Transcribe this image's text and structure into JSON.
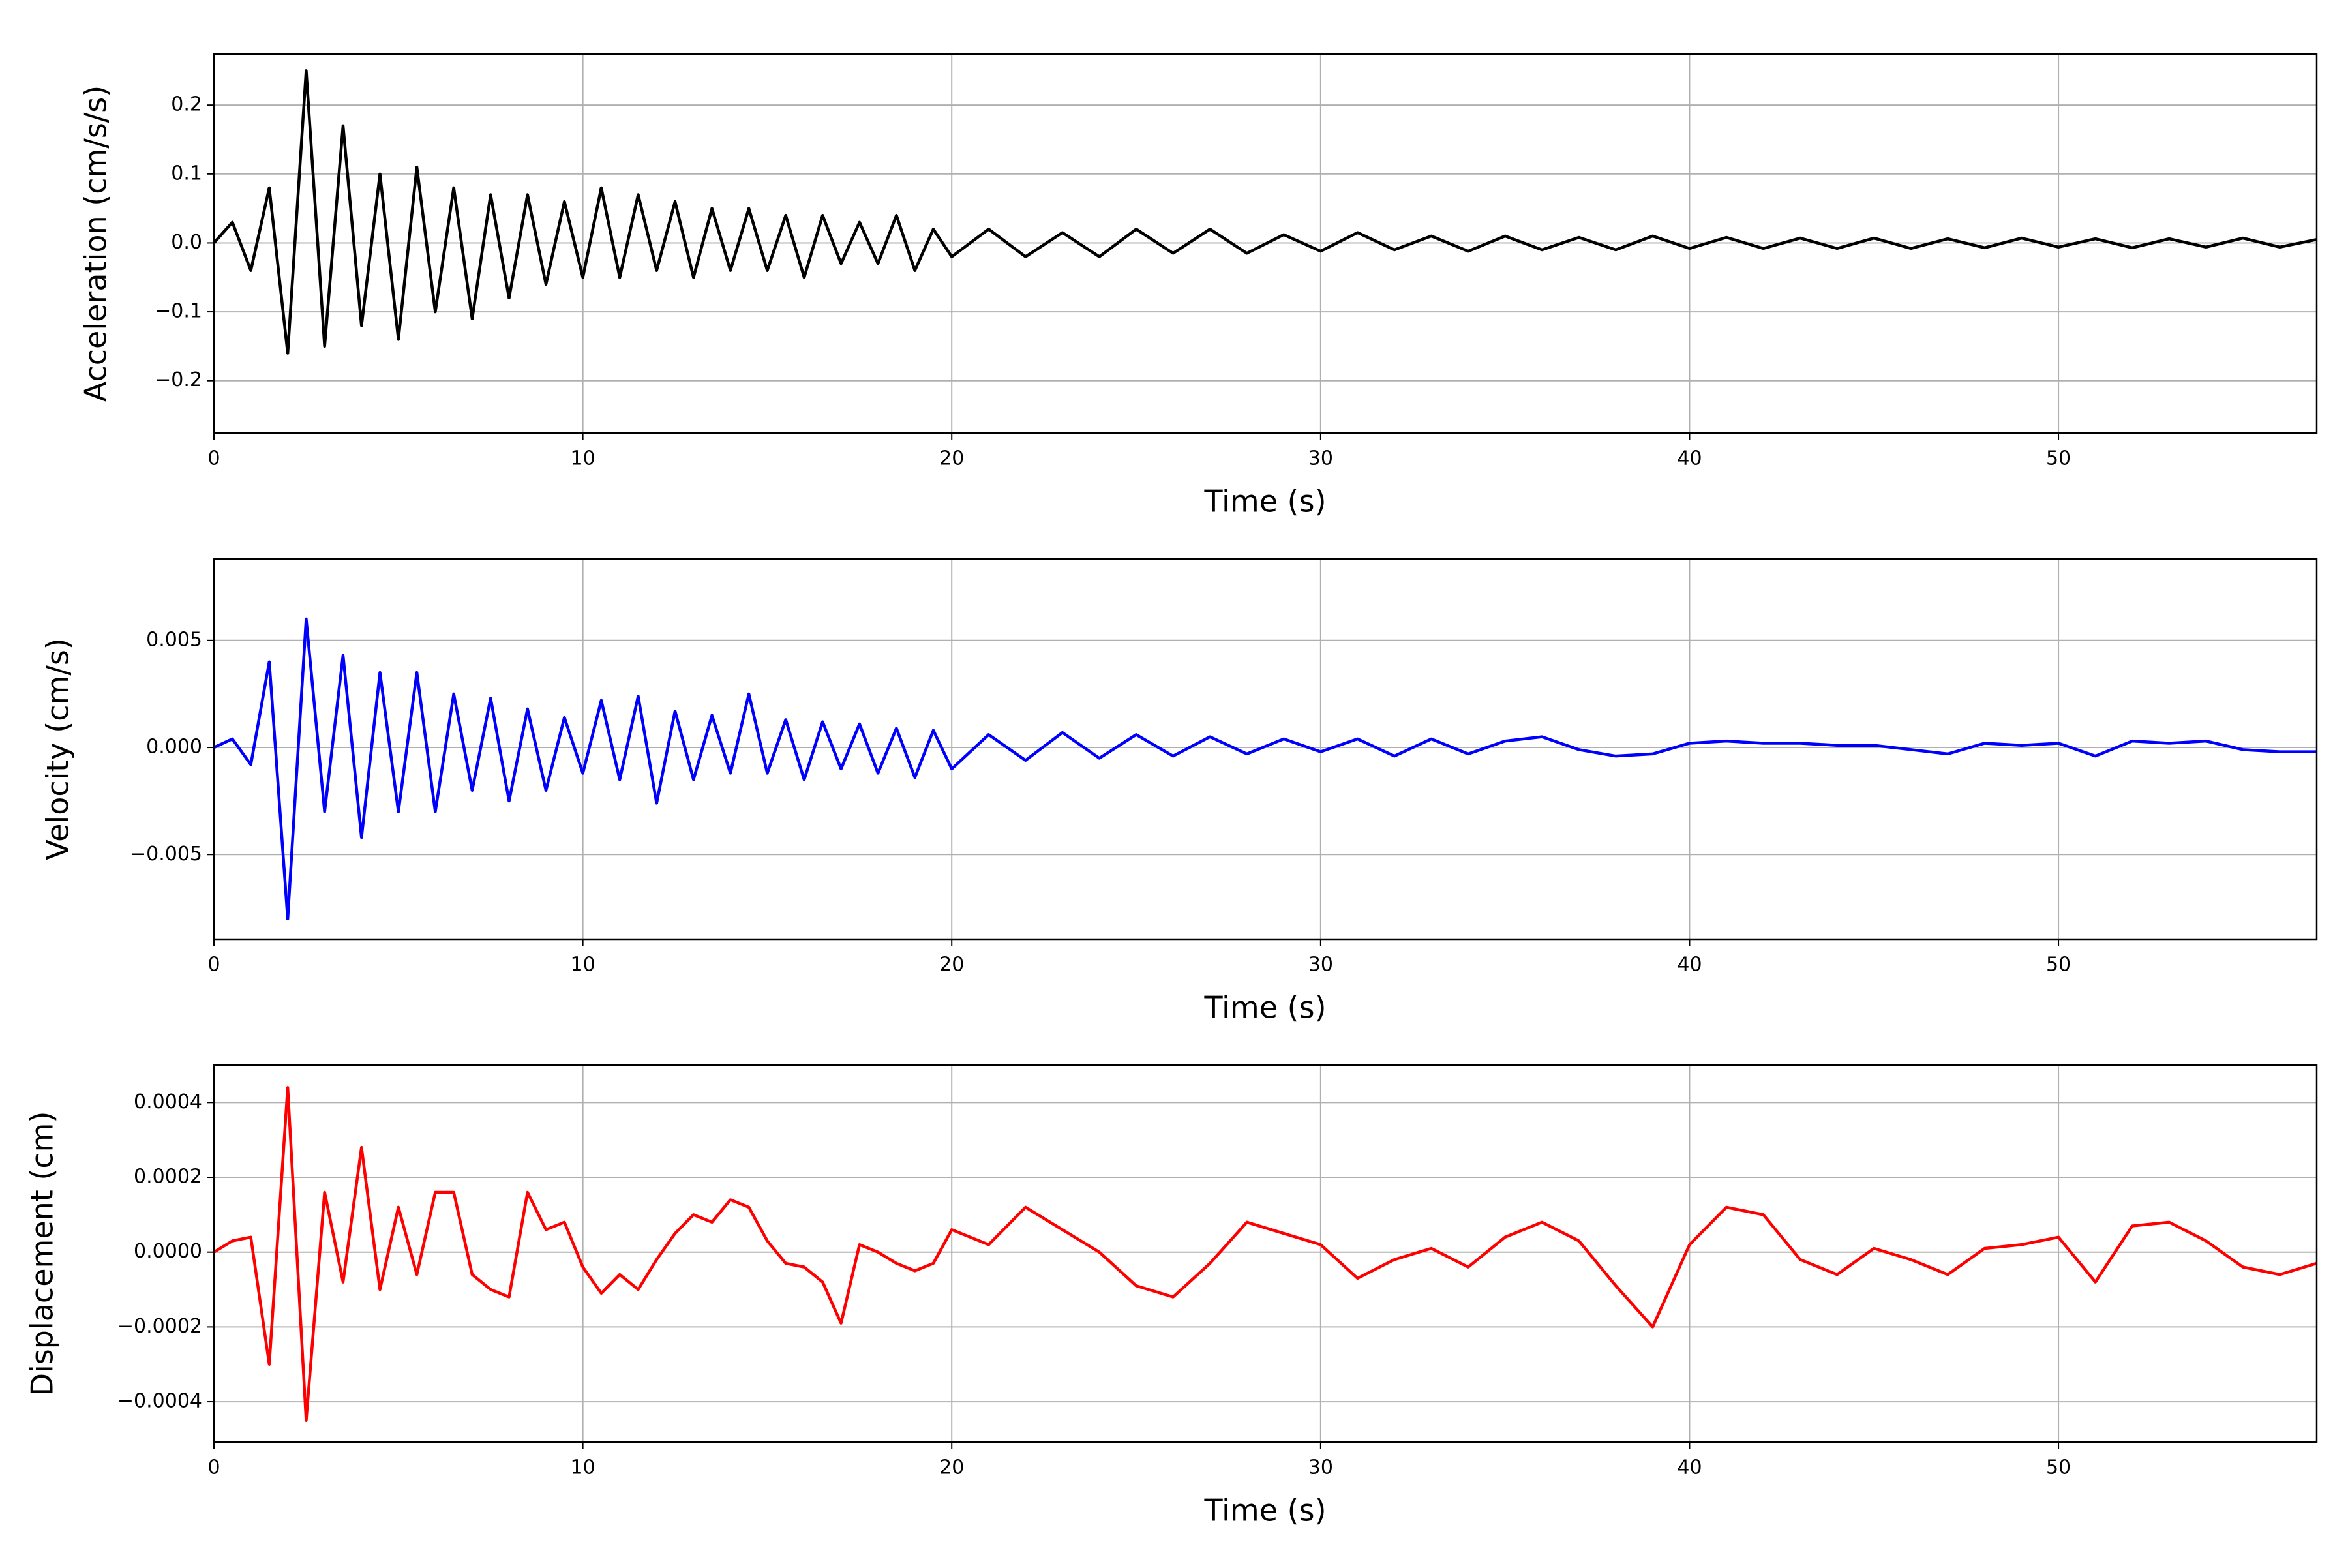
{
  "chart_data": [
    {
      "type": "line",
      "xlabel": "Time (s)",
      "ylabel": "Acceleration (cm/s/s)",
      "color": "#000000",
      "grid": true,
      "xlim": [
        0,
        57
      ],
      "xticks": [
        0,
        10,
        20,
        30,
        40,
        50
      ],
      "ylim": [
        -0.276,
        0.274
      ],
      "yticks": [
        {
          "value": -0.2,
          "label": "−0.2"
        },
        {
          "value": -0.1,
          "label": "−0.1"
        },
        {
          "value": 0,
          "label": "0.0"
        },
        0.1,
        0.2
      ],
      "x": [
        0,
        0.5,
        1,
        1.5,
        2,
        2.5,
        3,
        3.5,
        4,
        4.5,
        5,
        5.5,
        6,
        6.5,
        7,
        7.5,
        8,
        8.5,
        9,
        9.5,
        10,
        10.5,
        11,
        11.5,
        12,
        12.5,
        13,
        13.5,
        14,
        14.5,
        15,
        15.5,
        16,
        16.5,
        17,
        17.5,
        18,
        18.5,
        19,
        19.5,
        20,
        21,
        22,
        23,
        24,
        25,
        26,
        27,
        28,
        29,
        30,
        31,
        32,
        33,
        34,
        35,
        36,
        37,
        38,
        39,
        40,
        41,
        42,
        43,
        44,
        45,
        46,
        47,
        48,
        49,
        50,
        51,
        52,
        53,
        54,
        55,
        56,
        57
      ],
      "values": [
        0,
        0.03,
        -0.04,
        0.08,
        -0.16,
        0.25,
        -0.15,
        0.17,
        -0.12,
        0.1,
        -0.14,
        0.11,
        -0.1,
        0.08,
        -0.11,
        0.07,
        -0.08,
        0.07,
        -0.06,
        0.06,
        -0.05,
        0.08,
        -0.05,
        0.07,
        -0.04,
        0.06,
        -0.05,
        0.05,
        -0.04,
        0.05,
        -0.04,
        0.04,
        -0.05,
        0.04,
        -0.03,
        0.03,
        -0.03,
        0.04,
        -0.04,
        0.02,
        -0.02,
        0.02,
        -0.02,
        0.015,
        -0.02,
        0.02,
        -0.015,
        0.02,
        -0.015,
        0.012,
        -0.012,
        0.015,
        -0.01,
        0.01,
        -0.012,
        0.01,
        -0.01,
        0.008,
        -0.01,
        0.01,
        -0.008,
        0.008,
        -0.008,
        0.007,
        -0.008,
        0.007,
        -0.008,
        0.006,
        -0.007,
        0.007,
        -0.006,
        0.006,
        -0.007,
        0.006,
        -0.006,
        0.007,
        -0.006,
        0.005
      ]
    },
    {
      "type": "line",
      "xlabel": "Time (s)",
      "ylabel": "Velocity (cm/s)",
      "color": "#0000ff",
      "grid": true,
      "xlim": [
        0,
        57
      ],
      "xticks": [
        0,
        10,
        20,
        30,
        40,
        50
      ],
      "ylim": [
        -0.00895,
        0.0088
      ],
      "yticks": [
        {
          "value": -0.005,
          "label": "−0.005"
        },
        {
          "value": 0,
          "label": "0.000"
        },
        0.005
      ],
      "x": [
        0,
        0.5,
        1,
        1.5,
        2,
        2.5,
        3,
        3.5,
        4,
        4.5,
        5,
        5.5,
        6,
        6.5,
        7,
        7.5,
        8,
        8.5,
        9,
        9.5,
        10,
        10.5,
        11,
        11.5,
        12,
        12.5,
        13,
        13.5,
        14,
        14.5,
        15,
        15.5,
        16,
        16.5,
        17,
        17.5,
        18,
        18.5,
        19,
        19.5,
        20,
        21,
        22,
        23,
        24,
        25,
        26,
        27,
        28,
        29,
        30,
        31,
        32,
        33,
        34,
        35,
        36,
        37,
        38,
        39,
        40,
        41,
        42,
        43,
        44,
        45,
        46,
        47,
        48,
        49,
        50,
        51,
        52,
        53,
        54,
        55,
        56,
        57
      ],
      "values": [
        0,
        0.0004,
        -0.0008,
        0.004,
        -0.008,
        0.006,
        -0.003,
        0.0043,
        -0.0042,
        0.0035,
        -0.003,
        0.0035,
        -0.003,
        0.0025,
        -0.002,
        0.0023,
        -0.0025,
        0.0018,
        -0.002,
        0.0014,
        -0.0012,
        0.0022,
        -0.0015,
        0.0024,
        -0.0026,
        0.0017,
        -0.0015,
        0.0015,
        -0.0012,
        0.0025,
        -0.0012,
        0.0013,
        -0.0015,
        0.0012,
        -0.001,
        0.0011,
        -0.0012,
        0.0009,
        -0.0014,
        0.0008,
        -0.001,
        0.0006,
        -0.0006,
        0.0007,
        -0.0005,
        0.0006,
        -0.0004,
        0.0005,
        -0.0003,
        0.0004,
        -0.0002,
        0.0004,
        -0.0004,
        0.0004,
        -0.0003,
        0.0003,
        0.0005,
        -0.0001,
        -0.0004,
        -0.0003,
        0.0002,
        0.0003,
        0.0002,
        0.0002,
        0.0001,
        0.0001,
        -0.0001,
        -0.0003,
        0.0002,
        0.0001,
        0.0002,
        -0.0004,
        0.0003,
        0.0002,
        0.0003,
        -0.0001,
        -0.0002,
        -0.0002
      ]
    },
    {
      "type": "line",
      "xlabel": "Time (s)",
      "ylabel": "Displacement (cm)",
      "color": "#ff0000",
      "grid": true,
      "xlim": [
        0,
        57
      ],
      "xticks": [
        0,
        10,
        20,
        30,
        40,
        50
      ],
      "ylim": [
        -0.000508,
        0.0005
      ],
      "yticks": [
        {
          "value": -0.0004,
          "label": "−0.0004"
        },
        {
          "value": -0.0002,
          "label": "−0.0002"
        },
        {
          "value": 0,
          "label": "0.0000"
        },
        0.0002,
        0.0004
      ],
      "x": [
        0,
        0.5,
        1,
        1.5,
        2,
        2.5,
        3,
        3.5,
        4,
        4.5,
        5,
        5.5,
        6,
        6.5,
        7,
        7.5,
        8,
        8.5,
        9,
        9.5,
        10,
        10.5,
        11,
        11.5,
        12,
        12.5,
        13,
        13.5,
        14,
        14.5,
        15,
        15.5,
        16,
        16.5,
        17,
        17.5,
        18,
        18.5,
        19,
        19.5,
        20,
        21,
        22,
        23,
        24,
        25,
        26,
        27,
        28,
        29,
        30,
        31,
        32,
        33,
        34,
        35,
        36,
        37,
        38,
        39,
        40,
        41,
        42,
        43,
        44,
        45,
        46,
        47,
        48,
        49,
        50,
        51,
        52,
        53,
        54,
        55,
        56,
        57
      ],
      "values": [
        0,
        3e-05,
        4e-05,
        -0.0003,
        0.00044,
        -0.00045,
        0.00016,
        -8e-05,
        0.00028,
        -0.0001,
        0.00012,
        -6e-05,
        0.00016,
        0.00016,
        -6e-05,
        -0.0001,
        -0.00012,
        0.00016,
        6e-05,
        8e-05,
        -4e-05,
        -0.00011,
        -6e-05,
        -0.0001,
        -2e-05,
        5e-05,
        0.0001,
        8e-05,
        0.00014,
        0.00012,
        3e-05,
        -3e-05,
        -4e-05,
        -8e-05,
        -0.00019,
        2e-05,
        0,
        -3e-05,
        -5e-05,
        -3e-05,
        6e-05,
        2e-05,
        0.00012,
        6e-05,
        0,
        -9e-05,
        -0.00012,
        -3e-05,
        8e-05,
        5e-05,
        2e-05,
        -7e-05,
        -2e-05,
        1e-05,
        -4e-05,
        4e-05,
        8e-05,
        3e-05,
        -9e-05,
        -0.0002,
        2e-05,
        0.00012,
        0.0001,
        -2e-05,
        -6e-05,
        1e-05,
        -2e-05,
        -6e-05,
        1e-05,
        2e-05,
        4e-05,
        -8e-05,
        7e-05,
        8e-05,
        3e-05,
        -4e-05,
        -6e-05,
        -3e-05
      ]
    }
  ]
}
